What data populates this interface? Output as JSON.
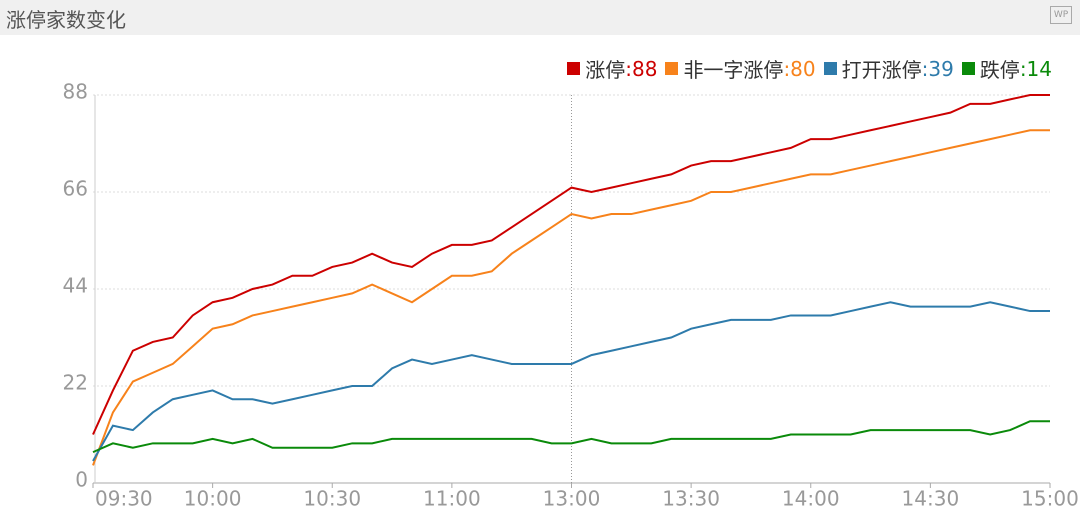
{
  "header": {
    "icon": "WP"
  },
  "chart_data": {
    "type": "line",
    "title": "涨停家数变化",
    "x": [
      0,
      5,
      10,
      15,
      20,
      25,
      30,
      35,
      40,
      45,
      50,
      55,
      60,
      65,
      70,
      75,
      80,
      85,
      90,
      95,
      100,
      105,
      110,
      115,
      120,
      125,
      130,
      135,
      140,
      145,
      150,
      155,
      160,
      165,
      170,
      175,
      180,
      185,
      190,
      195,
      200,
      205,
      210,
      215,
      220,
      225,
      230,
      235,
      240
    ],
    "xlim": [
      0,
      240
    ],
    "xticks": [
      {
        "value": 0,
        "label": "09:30"
      },
      {
        "value": 30,
        "label": "10:00"
      },
      {
        "value": 60,
        "label": "10:30"
      },
      {
        "value": 90,
        "label": "11:00"
      },
      {
        "value": 120,
        "label": "13:00"
      },
      {
        "value": 150,
        "label": "13:30"
      },
      {
        "value": 180,
        "label": "14:00"
      },
      {
        "value": 210,
        "label": "14:30"
      },
      {
        "value": 240,
        "label": "15:00"
      }
    ],
    "ylim": [
      0,
      88
    ],
    "yticks": [
      0,
      22,
      44,
      66,
      88
    ],
    "grid": true,
    "crosshair_x": 120,
    "legend": "top-right",
    "series": [
      {
        "name": "涨停",
        "label": ":88",
        "color": "#cc0000",
        "values": [
          11,
          21,
          30,
          32,
          33,
          38,
          41,
          42,
          44,
          45,
          47,
          47,
          49,
          50,
          52,
          50,
          49,
          52,
          54,
          54,
          55,
          58,
          61,
          64,
          67,
          66,
          67,
          68,
          69,
          70,
          72,
          73,
          73,
          74,
          75,
          76,
          78,
          78,
          79,
          80,
          81,
          82,
          83,
          84,
          86,
          86,
          87,
          88,
          88
        ]
      },
      {
        "name": "非一字涨停",
        "label": ":80",
        "color": "#f7821b",
        "values": [
          4,
          16,
          23,
          25,
          27,
          31,
          35,
          36,
          38,
          39,
          40,
          41,
          42,
          43,
          45,
          43,
          41,
          44,
          47,
          47,
          48,
          52,
          55,
          58,
          61,
          60,
          61,
          61,
          62,
          63,
          64,
          66,
          66,
          67,
          68,
          69,
          70,
          70,
          71,
          72,
          73,
          74,
          75,
          76,
          77,
          78,
          79,
          80,
          80
        ]
      },
      {
        "name": "打开涨停",
        "label": ":39",
        "color": "#2e7bab",
        "values": [
          5,
          13,
          12,
          16,
          19,
          20,
          21,
          19,
          19,
          18,
          19,
          20,
          21,
          22,
          22,
          26,
          28,
          27,
          28,
          29,
          28,
          27,
          27,
          27,
          27,
          29,
          30,
          31,
          32,
          33,
          35,
          36,
          37,
          37,
          37,
          38,
          38,
          38,
          39,
          40,
          41,
          40,
          40,
          40,
          40,
          41,
          40,
          39,
          39
        ]
      },
      {
        "name": "跌停",
        "label": ":14",
        "color": "#0a8a0a",
        "values": [
          7,
          9,
          8,
          9,
          9,
          9,
          10,
          9,
          10,
          8,
          8,
          8,
          8,
          9,
          9,
          10,
          10,
          10,
          10,
          10,
          10,
          10,
          10,
          9,
          9,
          10,
          9,
          9,
          9,
          10,
          10,
          10,
          10,
          10,
          10,
          11,
          11,
          11,
          11,
          12,
          12,
          12,
          12,
          12,
          12,
          11,
          12,
          14,
          14
        ]
      }
    ]
  }
}
